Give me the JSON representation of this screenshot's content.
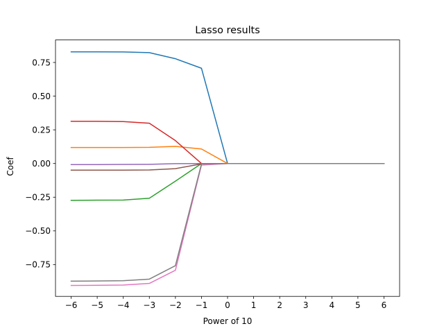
{
  "chart_data": {
    "type": "line",
    "title": "Lasso results",
    "xlabel": "Power of 10",
    "ylabel": "Coef",
    "x": [
      -6,
      -5,
      -4,
      -3,
      -2,
      -1,
      0,
      1,
      2,
      3,
      4,
      5,
      6
    ],
    "xticks": [
      -6,
      -5,
      -4,
      -3,
      -2,
      -1,
      0,
      1,
      2,
      3,
      4,
      5,
      6
    ],
    "xlim": [
      -6.6,
      6.6
    ],
    "yticks": [
      -0.75,
      -0.5,
      -0.25,
      0.0,
      0.25,
      0.5,
      0.75
    ],
    "ytick_labels": [
      "−0.75",
      "−0.50",
      "−0.25",
      "0.00",
      "0.25",
      "0.50",
      "0.75"
    ],
    "ylim": [
      -0.986,
      0.917
    ],
    "grid": false,
    "series": [
      {
        "color": "#1f77b4",
        "values": [
          0.829,
          0.829,
          0.828,
          0.823,
          0.778,
          0.707,
          0.0,
          0.0,
          0.0,
          0.0,
          0.0,
          0.0,
          0.0
        ]
      },
      {
        "color": "#ff7f0e",
        "values": [
          0.119,
          0.119,
          0.119,
          0.12,
          0.127,
          0.108,
          0.0,
          0.0,
          0.0,
          0.0,
          0.0,
          0.0,
          0.0
        ]
      },
      {
        "color": "#2ca02c",
        "values": [
          -0.273,
          -0.272,
          -0.271,
          -0.258,
          -0.131,
          0.0,
          0.0,
          0.0,
          0.0,
          0.0,
          0.0,
          0.0,
          0.0
        ]
      },
      {
        "color": "#d62728",
        "values": [
          0.313,
          0.313,
          0.311,
          0.299,
          0.17,
          0.0,
          0.0,
          0.0,
          0.0,
          0.0,
          0.0,
          0.0,
          0.0
        ]
      },
      {
        "color": "#9467bd",
        "values": [
          -0.008,
          -0.008,
          -0.007,
          -0.006,
          -0.001,
          0.0,
          0.0,
          0.0,
          0.0,
          0.0,
          0.0,
          0.0,
          0.0
        ]
      },
      {
        "color": "#8c564b",
        "values": [
          -0.049,
          -0.049,
          -0.049,
          -0.048,
          -0.038,
          -0.003,
          0.0,
          0.0,
          0.0,
          0.0,
          0.0,
          0.0,
          0.0
        ]
      },
      {
        "color": "#e377c2",
        "values": [
          -0.905,
          -0.904,
          -0.902,
          -0.89,
          -0.792,
          -0.012,
          0.0,
          0.0,
          0.0,
          0.0,
          0.0,
          0.0,
          0.0
        ]
      },
      {
        "color": "#7f7f7f",
        "values": [
          -0.873,
          -0.872,
          -0.87,
          -0.858,
          -0.758,
          -0.003,
          0.0,
          0.0,
          0.0,
          0.0,
          0.0,
          0.0,
          0.0
        ]
      }
    ]
  }
}
